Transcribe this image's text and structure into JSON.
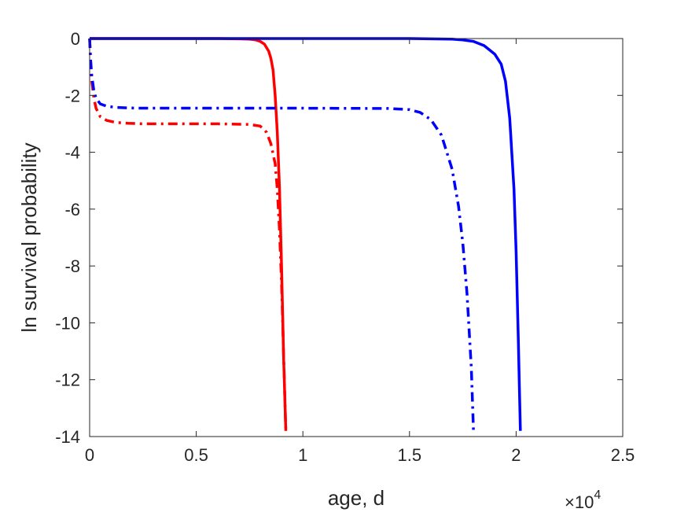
{
  "chart_data": {
    "type": "line",
    "title": "",
    "xlabel": "age, d",
    "ylabel": "ln survival probability",
    "x_exponent_label": "×10",
    "x_exponent_power": "4",
    "xlim": [
      0,
      2.5
    ],
    "ylim": [
      -14,
      0
    ],
    "x_ticks": [
      0,
      0.5,
      1,
      1.5,
      2,
      2.5
    ],
    "x_tick_labels": [
      "0",
      "0.5",
      "1",
      "1.5",
      "2",
      "2.5"
    ],
    "y_ticks": [
      0,
      -2,
      -4,
      -6,
      -8,
      -10,
      -12,
      -14
    ],
    "y_tick_labels": [
      "0",
      "-2",
      "-4",
      "-6",
      "-8",
      "-10",
      "-12",
      "-14"
    ],
    "grid": false,
    "box": true,
    "series": [
      {
        "color": "#ff0000",
        "style": "solid",
        "x": [
          0,
          0.2,
          0.4,
          0.6,
          0.7,
          0.75,
          0.78,
          0.8,
          0.82,
          0.84,
          0.85,
          0.86,
          0.87,
          0.88,
          0.89,
          0.9,
          0.91,
          0.92
        ],
        "y": [
          0,
          0,
          0,
          0,
          -0.01,
          -0.02,
          -0.05,
          -0.1,
          -0.2,
          -0.45,
          -0.7,
          -1.1,
          -2.0,
          -3.3,
          -5.2,
          -8.0,
          -11.3,
          -13.8
        ]
      },
      {
        "color": "#0000ff",
        "style": "solid",
        "x": [
          0,
          0.5,
          1.0,
          1.5,
          1.6,
          1.7,
          1.75,
          1.8,
          1.85,
          1.9,
          1.93,
          1.95,
          1.97,
          1.99,
          2.0,
          2.01,
          2.02
        ],
        "y": [
          0,
          0,
          0,
          0,
          -0.01,
          -0.02,
          -0.05,
          -0.1,
          -0.25,
          -0.55,
          -0.9,
          -1.5,
          -2.8,
          -5.3,
          -7.5,
          -10.5,
          -13.8
        ]
      },
      {
        "color": "#ff0000",
        "style": "dashdot",
        "x": [
          0,
          0.005,
          0.01,
          0.02,
          0.03,
          0.05,
          0.08,
          0.12,
          0.18,
          0.25,
          0.4,
          0.6,
          0.75,
          0.8,
          0.83,
          0.85,
          0.87,
          0.88,
          0.89,
          0.9,
          0.91,
          0.92
        ],
        "y": [
          0,
          -0.9,
          -1.5,
          -2.1,
          -2.45,
          -2.75,
          -2.88,
          -2.95,
          -2.98,
          -3.0,
          -3.0,
          -3.0,
          -3.02,
          -3.08,
          -3.3,
          -3.7,
          -4.4,
          -5.3,
          -6.7,
          -8.6,
          -11.2,
          -13.8
        ]
      },
      {
        "color": "#0000ff",
        "style": "dashdot",
        "x": [
          0,
          0.005,
          0.01,
          0.02,
          0.03,
          0.05,
          0.08,
          0.12,
          0.18,
          0.25,
          0.5,
          1.0,
          1.4,
          1.5,
          1.55,
          1.6,
          1.65,
          1.7,
          1.73,
          1.75,
          1.77,
          1.79,
          1.8
        ],
        "y": [
          0,
          -0.8,
          -1.3,
          -1.85,
          -2.1,
          -2.3,
          -2.38,
          -2.42,
          -2.44,
          -2.45,
          -2.45,
          -2.45,
          -2.46,
          -2.5,
          -2.6,
          -2.85,
          -3.4,
          -4.6,
          -5.9,
          -7.2,
          -9.0,
          -11.6,
          -13.8
        ]
      }
    ]
  }
}
